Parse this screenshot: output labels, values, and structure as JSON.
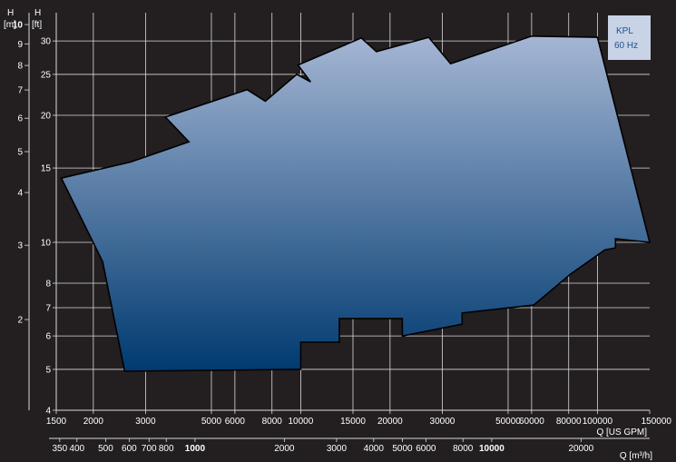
{
  "chart_data": {
    "type": "area",
    "legend": {
      "series": "KPL",
      "frequency": "60 Hz",
      "placement": "top-right"
    },
    "grid": true,
    "x_axis": {
      "label": "Q [US GPM]",
      "scale": "log",
      "range": [
        1500,
        150000
      ],
      "ticks": [
        "1500",
        "2000",
        "3000",
        "5000",
        "6000",
        "8000",
        "10000",
        "15000",
        "20000",
        "30000",
        "50000",
        "60000",
        "80000",
        "100000",
        "150000"
      ]
    },
    "x_axis_secondary": {
      "label": "Q [m³/h]",
      "ticks": [
        {
          "label": "350",
          "value": 350,
          "bold": false
        },
        {
          "label": "400",
          "value": 400,
          "bold": false
        },
        {
          "label": "500",
          "value": 500,
          "bold": false
        },
        {
          "label": "600",
          "value": 600,
          "bold": false
        },
        {
          "label": "700",
          "value": 700,
          "bold": false
        },
        {
          "label": "800",
          "value": 800,
          "bold": false
        },
        {
          "label": "1000",
          "value": 1000,
          "bold": true
        },
        {
          "label": "2000",
          "value": 2000,
          "bold": false
        },
        {
          "label": "3000",
          "value": 3000,
          "bold": false
        },
        {
          "label": "4000",
          "value": 4000,
          "bold": false
        },
        {
          "label": "5000",
          "value": 5000,
          "bold": false
        },
        {
          "label": "6000",
          "value": 6000,
          "bold": false
        },
        {
          "label": "8000",
          "value": 8000,
          "bold": false
        },
        {
          "label": "10000",
          "value": 10000,
          "bold": true
        },
        {
          "label": "20000",
          "value": 20000,
          "bold": false
        }
      ]
    },
    "y_axis_ft": {
      "label": "H [ft]",
      "scale": "log",
      "range": [
        4,
        35
      ],
      "ticks": [
        "4",
        "5",
        "6",
        "7",
        "8",
        "10",
        "15",
        "20",
        "25",
        "30"
      ]
    },
    "y_axis_m": {
      "label": "H [m]",
      "ticks": [
        {
          "label": "2",
          "value": 2,
          "bold": false
        },
        {
          "label": "3",
          "value": 3,
          "bold": false
        },
        {
          "label": "4",
          "value": 4,
          "bold": false
        },
        {
          "label": "5",
          "value": 5,
          "bold": false
        },
        {
          "label": "6",
          "value": 6,
          "bold": false
        },
        {
          "label": "7",
          "value": 7,
          "bold": false
        },
        {
          "label": "8",
          "value": 8,
          "bold": false
        },
        {
          "label": "9",
          "value": 9,
          "bold": false
        },
        {
          "label": "10",
          "value": 10,
          "bold": true
        }
      ]
    },
    "region": {
      "fill_top": "#a5b6d4",
      "fill_bottom": "#003a70",
      "outline": "#000000",
      "boundary": [
        [
          1560,
          14.2
        ],
        [
          2670,
          15.5
        ],
        [
          4200,
          17.3
        ],
        [
          3500,
          19.8
        ],
        [
          6600,
          23.0
        ],
        [
          7600,
          21.6
        ],
        [
          9700,
          25.0
        ],
        [
          10800,
          24.0
        ],
        [
          9800,
          26.3
        ],
        [
          16000,
          30.5
        ],
        [
          18000,
          28.3
        ],
        [
          27000,
          30.6
        ],
        [
          32000,
          26.5
        ],
        [
          60000,
          30.8
        ],
        [
          100000,
          30.6
        ],
        [
          150000,
          10.0
        ],
        [
          115000,
          10.2
        ],
        [
          115000,
          9.7
        ],
        [
          106000,
          9.6
        ],
        [
          81000,
          8.4
        ],
        [
          61000,
          7.1
        ],
        [
          35000,
          6.8
        ],
        [
          35000,
          6.4
        ],
        [
          22000,
          6.0
        ],
        [
          22000,
          6.6
        ],
        [
          13500,
          6.6
        ],
        [
          13500,
          5.8
        ],
        [
          10000,
          5.8
        ],
        [
          10000,
          5.0
        ],
        [
          2550,
          4.95
        ],
        [
          2150,
          9.0
        ]
      ]
    },
    "colors": {
      "background": "#231f20",
      "grid": "#d9d9d9",
      "text": "#ffffff",
      "legend_box": "#c9d3e6",
      "legend_text": "#1f4f8f"
    }
  }
}
